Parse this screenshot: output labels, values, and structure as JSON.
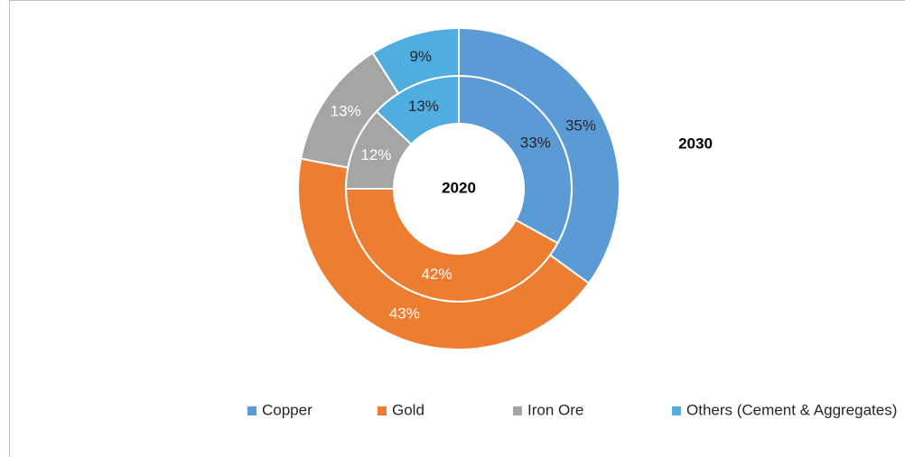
{
  "chart_data": {
    "type": "nested-donut",
    "categories": [
      "Copper",
      "Gold",
      "Iron Ore",
      "Others (Cement & Aggregates)"
    ],
    "colors": [
      "#5b9bd5",
      "#ed7d31",
      "#a5a5a5",
      "#4fade0"
    ],
    "label_colors": [
      "#262626",
      "#ffffff",
      "#ffffff",
      "#262626"
    ],
    "series": [
      {
        "name": "2020",
        "values": [
          33,
          42,
          12,
          13
        ],
        "value_labels": [
          "33%",
          "42%",
          "12%",
          "13%"
        ]
      },
      {
        "name": "2030",
        "values": [
          35,
          43,
          13,
          9
        ],
        "value_labels": [
          "35%",
          "43%",
          "13%",
          "9%"
        ]
      }
    ],
    "legend": "bottom"
  }
}
